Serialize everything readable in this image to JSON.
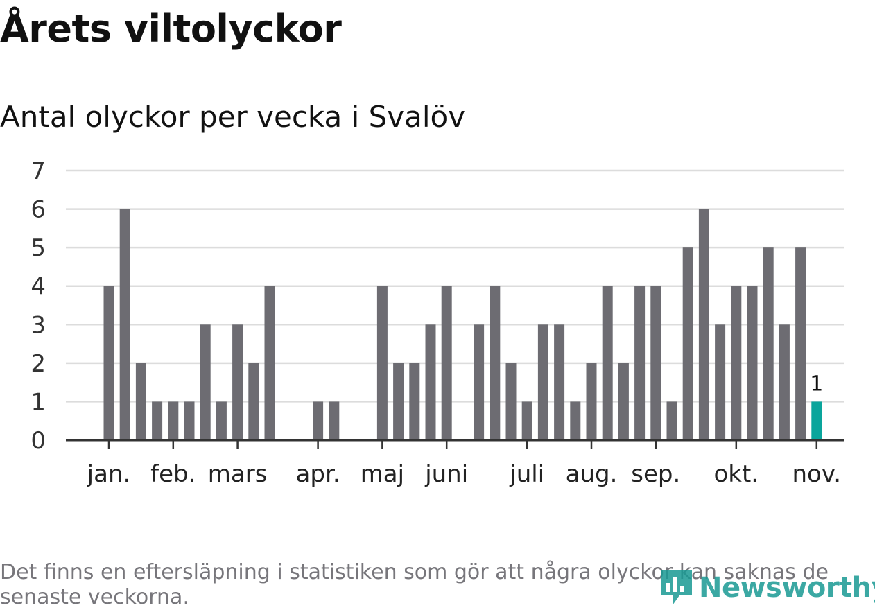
{
  "title": "Årets viltolyckor",
  "subtitle": "Antal olyckor per vecka i Svalöv",
  "footnote": "Det finns en eftersläpning i statistiken som gör att några olyckor kan saknas de senaste veckorna.",
  "logo": {
    "text": "Newsworthy",
    "icon": "newsworthy-logo-icon"
  },
  "colors": {
    "bar": "#6d6c72",
    "highlight": "#0aa59c",
    "grid": "#dcdcdc",
    "axis": "#333333",
    "text": "#111111"
  },
  "chart_data": {
    "type": "bar",
    "title": "Årets viltolyckor",
    "subtitle": "Antal olyckor per vecka i Svalöv",
    "xlabel": "",
    "ylabel": "",
    "ylim": [
      0,
      7
    ],
    "yticks": [
      0,
      1,
      2,
      3,
      4,
      5,
      6,
      7
    ],
    "grid": true,
    "weeks": [
      1,
      2,
      3,
      4,
      5,
      6,
      7,
      8,
      9,
      10,
      11,
      12,
      13,
      14,
      15,
      16,
      17,
      18,
      19,
      20,
      21,
      22,
      23,
      24,
      25,
      26,
      27,
      28,
      29,
      30,
      31,
      32,
      33,
      34,
      35,
      36,
      37,
      38,
      39,
      40,
      41,
      42,
      43,
      44,
      45
    ],
    "values": [
      4,
      6,
      2,
      1,
      1,
      1,
      3,
      1,
      3,
      2,
      4,
      0,
      0,
      1,
      1,
      0,
      0,
      4,
      2,
      2,
      3,
      4,
      0,
      3,
      4,
      2,
      1,
      3,
      3,
      1,
      2,
      4,
      2,
      4,
      4,
      1,
      5,
      6,
      3,
      4,
      4,
      5,
      3,
      5,
      1
    ],
    "highlight_index": 44,
    "highlight_label": "1",
    "month_ticks": [
      {
        "label": "jan.",
        "week": 1
      },
      {
        "label": "feb.",
        "week": 5
      },
      {
        "label": "mars",
        "week": 9
      },
      {
        "label": "apr.",
        "week": 14
      },
      {
        "label": "maj",
        "week": 18
      },
      {
        "label": "juni",
        "week": 22
      },
      {
        "label": "juli",
        "week": 27
      },
      {
        "label": "aug.",
        "week": 31
      },
      {
        "label": "sep.",
        "week": 35
      },
      {
        "label": "okt.",
        "week": 40
      },
      {
        "label": "nov.",
        "week": 45
      }
    ]
  }
}
